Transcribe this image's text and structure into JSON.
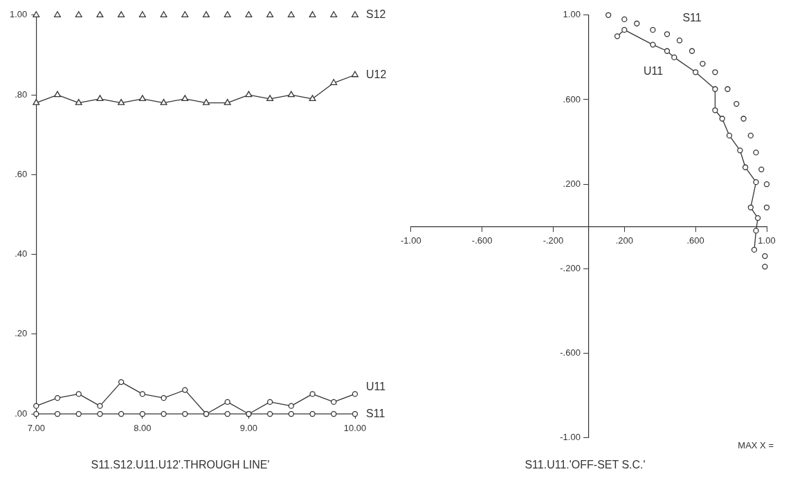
{
  "chart_data": [
    {
      "type": "line",
      "title": "S11.S12.U11.U12'.THROUGH LINE'",
      "x": [
        7.0,
        7.2,
        7.4,
        7.6,
        7.8,
        8.0,
        8.2,
        8.4,
        8.6,
        8.8,
        9.0,
        9.2,
        9.4,
        9.6,
        9.8,
        10.0
      ],
      "series": [
        {
          "name": "S12",
          "type": "scatter",
          "color": "#333333",
          "marker": "triangle",
          "values": [
            1.0,
            1.0,
            1.0,
            1.0,
            1.0,
            1.0,
            1.0,
            1.0,
            1.0,
            1.0,
            1.0,
            1.0,
            1.0,
            1.0,
            1.0,
            1.0
          ]
        },
        {
          "name": "U12",
          "color": "#333333",
          "marker": "triangle",
          "values": [
            0.78,
            0.8,
            0.78,
            0.79,
            0.78,
            0.79,
            0.78,
            0.79,
            0.78,
            0.78,
            0.8,
            0.79,
            0.8,
            0.79,
            0.83,
            0.85
          ]
        },
        {
          "name": "U11",
          "color": "#333333",
          "marker": "circle",
          "values": [
            0.02,
            0.04,
            0.05,
            0.02,
            0.08,
            0.05,
            0.04,
            0.06,
            0.0,
            0.03,
            0.0,
            0.03,
            0.02,
            0.05,
            0.03,
            0.05
          ]
        },
        {
          "name": "S11",
          "color": "#333333",
          "marker": "circle",
          "values": [
            0,
            0,
            0,
            0,
            0,
            0,
            0,
            0,
            0,
            0,
            0,
            0,
            0,
            0,
            0,
            0
          ]
        }
      ],
      "xlim": [
        7,
        10
      ],
      "xticks": [
        {
          "value": 7,
          "label": "7.00"
        },
        {
          "value": 8,
          "label": "8.00"
        },
        {
          "value": 9,
          "label": "9.00"
        },
        {
          "value": 10,
          "label": "10.00"
        }
      ],
      "ylim": [
        0,
        1
      ],
      "yticks": [
        {
          "value": 0,
          "label": ".00"
        },
        {
          "value": 0.2,
          "label": ".20"
        },
        {
          "value": 0.4,
          "label": ".40"
        },
        {
          "value": 0.6,
          "label": ".60"
        },
        {
          "value": 0.8,
          "label": ".80"
        },
        {
          "value": 1,
          "label": "1.00"
        }
      ],
      "grid": false,
      "legend": "right"
    },
    {
      "type": "line",
      "title": "S11.U11.'OFF-SET S.C.'",
      "annotations": [
        "MAX X ="
      ],
      "series": [
        {
          "name": "S11",
          "type": "scatter",
          "color": "#333333",
          "marker": "circle",
          "x": [
            0.11,
            0.2,
            0.27,
            0.36,
            0.44,
            0.51,
            0.58,
            0.64,
            0.71,
            0.78,
            0.83,
            0.87,
            0.91,
            0.94,
            0.97,
            1.0,
            1.0,
            0.99,
            0.99
          ],
          "values": [
            1.0,
            0.98,
            0.96,
            0.93,
            0.91,
            0.88,
            0.83,
            0.77,
            0.73,
            0.65,
            0.58,
            0.51,
            0.43,
            0.35,
            0.27,
            0.2,
            0.09,
            -0.14,
            -0.19
          ]
        },
        {
          "name": "U11",
          "color": "#333333",
          "marker": "circle",
          "x": [
            0.16,
            0.2,
            0.36,
            0.44,
            0.48,
            0.6,
            0.71,
            0.71,
            0.75,
            0.79,
            0.85,
            0.88,
            0.94,
            0.91,
            0.95,
            0.94,
            0.93
          ],
          "values": [
            0.9,
            0.93,
            0.86,
            0.83,
            0.8,
            0.73,
            0.65,
            0.55,
            0.51,
            0.43,
            0.36,
            0.28,
            0.21,
            0.09,
            0.04,
            -0.02,
            -0.11
          ]
        }
      ],
      "xlim": [
        -1,
        1
      ],
      "xticks": [
        {
          "value": -1,
          "label": "-1.00"
        },
        {
          "value": -0.6,
          "label": "-.600"
        },
        {
          "value": -0.2,
          "label": "-.200"
        },
        {
          "value": 0.2,
          "label": ".200"
        },
        {
          "value": 0.6,
          "label": ".600"
        },
        {
          "value": 1,
          "label": "1.00"
        }
      ],
      "ylim": [
        -1,
        1
      ],
      "yticks": [
        {
          "value": -1,
          "label": "-1.00"
        },
        {
          "value": -0.6,
          "label": "-.600"
        },
        {
          "value": -0.2,
          "label": "-.200"
        },
        {
          "value": 0.2,
          "label": ".200"
        },
        {
          "value": 0.6,
          "label": ".600"
        },
        {
          "value": 1,
          "label": "1.00"
        }
      ],
      "grid": false,
      "legend": false
    }
  ]
}
